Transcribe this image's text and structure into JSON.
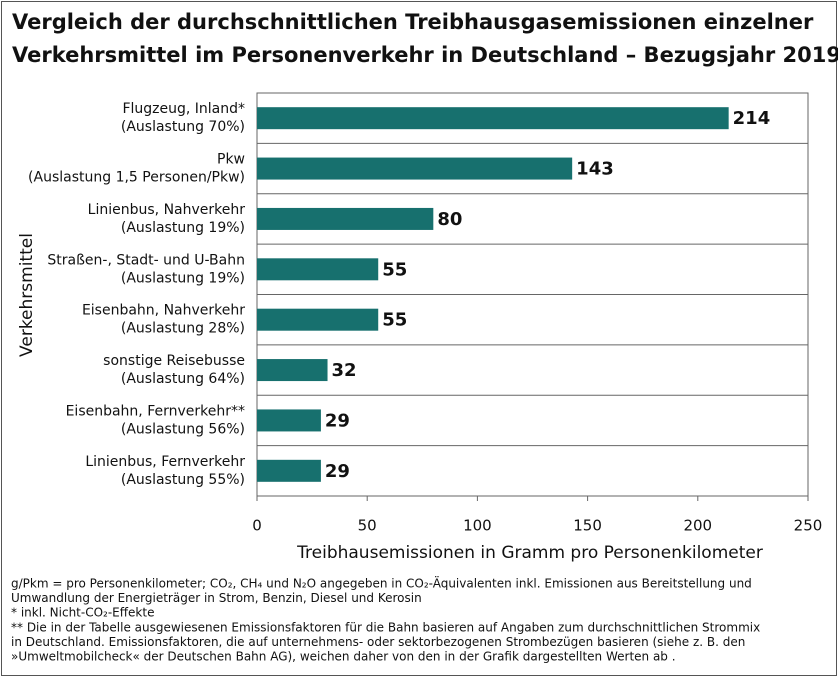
{
  "chart_data": {
    "type": "bar",
    "orientation": "horizontal",
    "title": [
      "Vergleich der durchschnittlichen Treibhausgasemissionen einzelner",
      "Verkehrsmittel im Personenverkehr in Deutschland – Bezugsjahr 2019"
    ],
    "categories": [
      "Flugzeug, Inland*\n(Auslastung 70%)",
      "Pkw\n(Auslastung 1,5 Personen/Pkw)",
      "Linienbus, Nahverkehr\n(Auslastung 19%)",
      "Straßen-, Stadt- und U-Bahn\n(Auslastung 19%)",
      "Eisenbahn, Nahverkehr\n(Auslastung 28%)",
      "sonstige Reisebusse\n(Auslastung 64%)",
      "Eisenbahn, Fernverkehr**\n(Auslastung 56%)",
      "Linienbus, Fernverkehr\n(Auslastung 55%)"
    ],
    "values": [
      214,
      143,
      80,
      55,
      55,
      32,
      29,
      29
    ],
    "color": "#17706e",
    "xlim": [
      0,
      250
    ],
    "xticks": [
      0,
      50,
      100,
      150,
      200,
      250
    ],
    "xlabel": "Treibhausemissionen in Gramm pro Personenkilometer",
    "ylabel": "Verkehrsmittel",
    "notes": [
      "g/Pkm = pro Personenkilometer; CO₂, CH₄ und N₂O angegeben in CO₂-Äquivalenten inkl. Emissionen aus Bereitstellung und",
      "Umwandlung der Energieträger in Strom, Benzin, Diesel und Kerosin",
      "* inkl. Nicht-CO₂-Effekte",
      "** Die in der Tabelle ausgewiesenen Emissionsfaktoren für die Bahn basieren auf Angaben zum durchschnittlichen Strommix",
      "in Deutschland. Emissionsfaktoren, die auf unternehmens- oder sektorbezogenen Strombezügen basieren (siehe z. B. den",
      "»Umweltmobilcheck« der Deutschen Bahn AG), weichen daher von den in der Grafik dargestellten Werten ab ."
    ]
  }
}
